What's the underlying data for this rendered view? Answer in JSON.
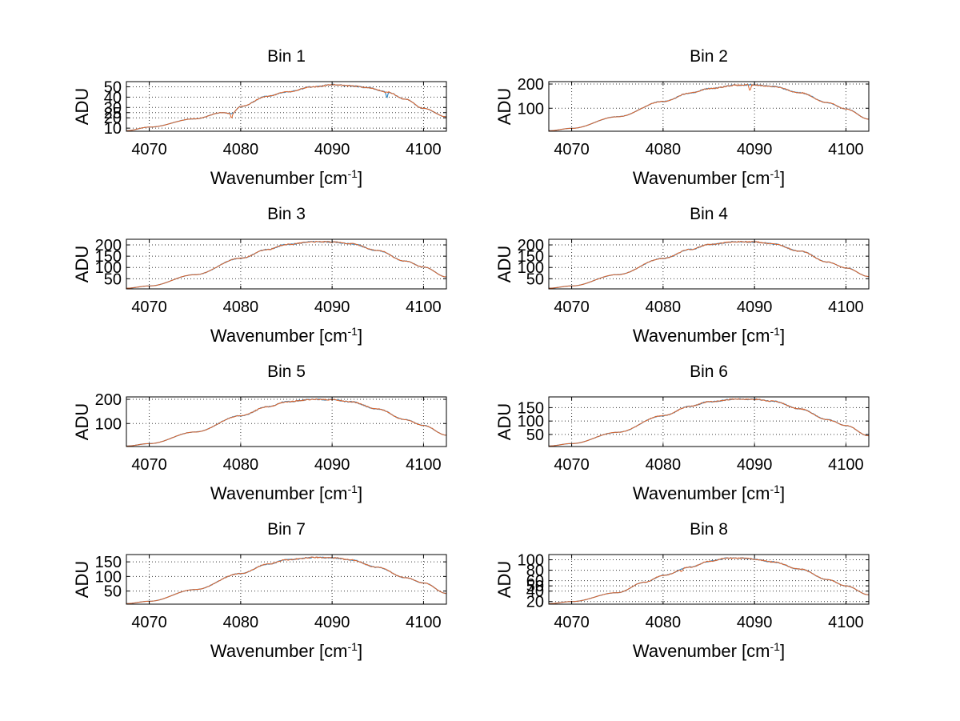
{
  "chart_data": {
    "type": "line",
    "layout": "4x2 grid",
    "shared": {
      "xlabel_main": "Wavenumber [cm",
      "xlabel_superscript": "-1",
      "xlabel_close": "]",
      "ylabel": "ADU",
      "xlim": [
        4067.5,
        4102.5
      ],
      "xticks": [
        4070,
        4080,
        4090,
        4100
      ],
      "grid": true,
      "series_names": [
        "series-blue",
        "series-orange"
      ],
      "series_colors": [
        "#3b8bc2",
        "#e0642a"
      ]
    },
    "panels": [
      {
        "title": "Bin 1",
        "ylim": [
          7,
          55
        ],
        "yticks": [
          10,
          20,
          25,
          30,
          40,
          50
        ],
        "ytick_labels": [
          "10",
          "20",
          "25",
          "30",
          "40",
          "50"
        ],
        "x": [
          4067.5,
          4070,
          4075,
          4078,
          4079,
          4080,
          4083,
          4085,
          4088,
          4090,
          4092,
          4094,
          4096,
          4098,
          4100,
          4102.5
        ],
        "y": [
          7.5,
          11,
          19,
          25,
          24,
          31,
          41,
          45,
          50,
          52,
          51,
          49,
          45,
          38,
          29,
          21
        ],
        "spikes": [
          {
            "x": 4079,
            "depth": 5,
            "series": 1
          },
          {
            "x": 4096,
            "depth": 6,
            "series": 0
          }
        ]
      },
      {
        "title": "Bin 2",
        "ylim": [
          5,
          210
        ],
        "yticks": [
          100,
          200
        ],
        "ytick_labels": [
          "100",
          "200"
        ],
        "x": [
          4067.5,
          4070,
          4075,
          4080,
          4083,
          4085,
          4088,
          4090,
          4092,
          4095,
          4098,
          4100,
          4102.5
        ],
        "y": [
          7,
          17,
          65,
          128,
          163,
          181,
          195,
          196,
          190,
          164,
          123,
          97,
          55
        ],
        "spikes": [
          {
            "x": 4089.5,
            "depth": 28,
            "series": 1
          }
        ]
      },
      {
        "title": "Bin 3",
        "ylim": [
          5,
          225
        ],
        "yticks": [
          50,
          100,
          150,
          200
        ],
        "ytick_labels": [
          "50",
          "100",
          "150",
          "200"
        ],
        "x": [
          4067.5,
          4070,
          4075,
          4080,
          4083,
          4085,
          4088,
          4090,
          4092,
          4095,
          4098,
          4100,
          4102.5
        ],
        "y": [
          8,
          18,
          68,
          141,
          180,
          202,
          214,
          213,
          206,
          175,
          128,
          102,
          58
        ],
        "spikes": []
      },
      {
        "title": "Bin 4",
        "ylim": [
          5,
          225
        ],
        "yticks": [
          50,
          100,
          150,
          200
        ],
        "ytick_labels": [
          "50",
          "100",
          "150",
          "200"
        ],
        "x": [
          4067.5,
          4070,
          4075,
          4080,
          4083,
          4085,
          4088,
          4090,
          4092,
          4095,
          4098,
          4100,
          4102.5
        ],
        "y": [
          8,
          18,
          68,
          140,
          180,
          202,
          214,
          213,
          205,
          172,
          124,
          98,
          60
        ],
        "spikes": []
      },
      {
        "title": "Bin 5",
        "ylim": [
          5,
          210
        ],
        "yticks": [
          100,
          200
        ],
        "ytick_labels": [
          "100",
          "200"
        ],
        "x": [
          4067.5,
          4070,
          4075,
          4080,
          4083,
          4085,
          4088,
          4090,
          4092,
          4095,
          4098,
          4100,
          4102.5
        ],
        "y": [
          7,
          17,
          65,
          132,
          170,
          190,
          200,
          198,
          190,
          160,
          116,
          92,
          52
        ],
        "spikes": []
      },
      {
        "title": "Bin 6",
        "ylim": [
          5,
          190
        ],
        "yticks": [
          50,
          100,
          150
        ],
        "ytick_labels": [
          "50",
          "100",
          "150"
        ],
        "x": [
          4067.5,
          4070,
          4075,
          4080,
          4083,
          4085,
          4088,
          4090,
          4092,
          4095,
          4098,
          4100,
          4102.5
        ],
        "y": [
          7,
          16,
          58,
          120,
          155,
          172,
          182,
          181,
          174,
          145,
          105,
          83,
          45
        ],
        "spikes": []
      },
      {
        "title": "Bin 7",
        "ylim": [
          5,
          175
        ],
        "yticks": [
          50,
          100,
          150
        ],
        "ytick_labels": [
          "50",
          "100",
          "150"
        ],
        "x": [
          4067.5,
          4070,
          4075,
          4080,
          4083,
          4085,
          4088,
          4090,
          4092,
          4095,
          4098,
          4100,
          4102.5
        ],
        "y": [
          7,
          15,
          55,
          110,
          142,
          157,
          165,
          164,
          157,
          131,
          96,
          78,
          42
        ],
        "spikes": []
      },
      {
        "title": "Bin 8",
        "ylim": [
          15,
          110
        ],
        "yticks": [
          20,
          40,
          50,
          60,
          80,
          100
        ],
        "ytick_labels": [
          "20",
          "40",
          "50",
          "60",
          "80",
          "100"
        ],
        "x": [
          4067.5,
          4070,
          4075,
          4078,
          4080,
          4083,
          4085,
          4087,
          4089,
          4090,
          4092,
          4095,
          4098,
          4100,
          4102.5
        ],
        "y": [
          16,
          20,
          37,
          57,
          70,
          86,
          97,
          103,
          103,
          101,
          96,
          82,
          62,
          50,
          33
        ],
        "spikes": [
          {
            "x": 4082,
            "depth": 6,
            "series": 1
          }
        ]
      }
    ]
  }
}
